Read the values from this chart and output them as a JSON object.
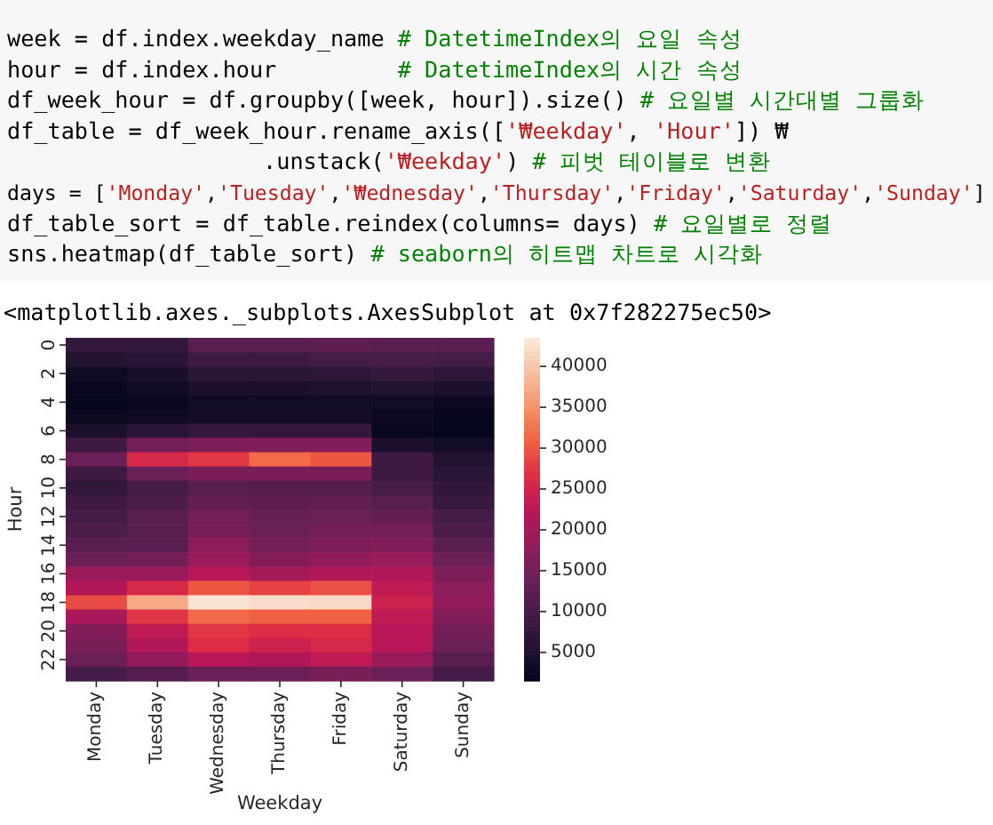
{
  "chart_data": {
    "type": "heatmap",
    "xlabel": "Weekday",
    "ylabel": "Hour",
    "annotations": [
      "week = df.index.weekday_name # DatetimeIndex의 요일 속성",
      "hour = df.index.hour         # DatetimeIndex의 시간 속성",
      "df_week_hour = df.groupby([week, hour]).size() # 요일별 시간대별 그룹화",
      "df_table = df_week_hour.rename_axis(['₩eekday', 'Hour']) ₩",
      "                   .unstack('₩eekday') # 피벗 테이블로 변환",
      "days = ['Monday','Tuesday','₩ednesday','Thursday','Friday','Saturday','Sunday']",
      "df_table_sort = df_table.reindex(columns= days) # 요일별로 정렬",
      "sns.heatmap(df_table_sort) # seaborn의 히트맵 차트로 시각화",
      "<matplotlib.axes._subplots.AxesSubplot at 0x7f282275ec50>"
    ],
    "categories": [
      "Monday",
      "Tuesday",
      "Wednesday",
      "Thursday",
      "Friday",
      "Saturday",
      "Sunday"
    ],
    "y_categories": [
      "0",
      null,
      "2",
      null,
      "4",
      null,
      "6",
      null,
      "8",
      null,
      "10",
      null,
      "12",
      null,
      "14",
      null,
      "16",
      null,
      "18",
      null,
      "20",
      null,
      "22",
      null
    ],
    "cells": [
      [
        7800,
        7800,
        12000,
        12000,
        12800,
        12000,
        12000
      ],
      [
        5700,
        6500,
        9100,
        9100,
        9900,
        9900,
        9900
      ],
      [
        3200,
        4400,
        6500,
        6500,
        7000,
        7800,
        7000
      ],
      [
        2300,
        3200,
        4900,
        4900,
        5300,
        5700,
        4900
      ],
      [
        1900,
        2300,
        3600,
        3600,
        3600,
        3600,
        2800
      ],
      [
        2800,
        3200,
        4000,
        4000,
        4000,
        2800,
        1900
      ],
      [
        4900,
        6500,
        7800,
        7800,
        7800,
        2300,
        1900
      ],
      [
        9100,
        15000,
        16200,
        16600,
        16600,
        4900,
        3600
      ],
      [
        14100,
        25900,
        27500,
        31700,
        30100,
        9100,
        5700
      ],
      [
        9100,
        14100,
        15800,
        15800,
        15800,
        9100,
        6500
      ],
      [
        7400,
        9900,
        12000,
        11600,
        11600,
        9900,
        7400
      ],
      [
        9100,
        10700,
        13300,
        12800,
        13300,
        12000,
        8200
      ],
      [
        9900,
        12000,
        15000,
        13700,
        14100,
        13300,
        9900
      ],
      [
        10700,
        12000,
        15800,
        14100,
        15000,
        15000,
        10700
      ],
      [
        12000,
        12400,
        17500,
        15000,
        16200,
        16600,
        12400
      ],
      [
        14100,
        15000,
        19100,
        16600,
        18300,
        19100,
        14100
      ],
      [
        19100,
        19100,
        22500,
        20400,
        21700,
        21700,
        16200
      ],
      [
        21700,
        25900,
        30100,
        28400,
        29600,
        23300,
        17500
      ],
      [
        29200,
        37200,
        42700,
        42200,
        41800,
        24600,
        18300
      ],
      [
        20800,
        27500,
        31700,
        30900,
        30900,
        23300,
        16600
      ],
      [
        16600,
        23300,
        27500,
        26700,
        26700,
        22500,
        15000
      ],
      [
        15800,
        21700,
        26700,
        24600,
        25900,
        22500,
        14100
      ],
      [
        14100,
        18300,
        22500,
        21700,
        23300,
        19100,
        12000
      ],
      [
        9900,
        11600,
        14100,
        14100,
        15800,
        14100,
        9900
      ]
    ],
    "clim": [
      1500,
      43500
    ],
    "cticks": [
      5000,
      10000,
      15000,
      20000,
      25000,
      30000,
      35000,
      40000
    ]
  }
}
